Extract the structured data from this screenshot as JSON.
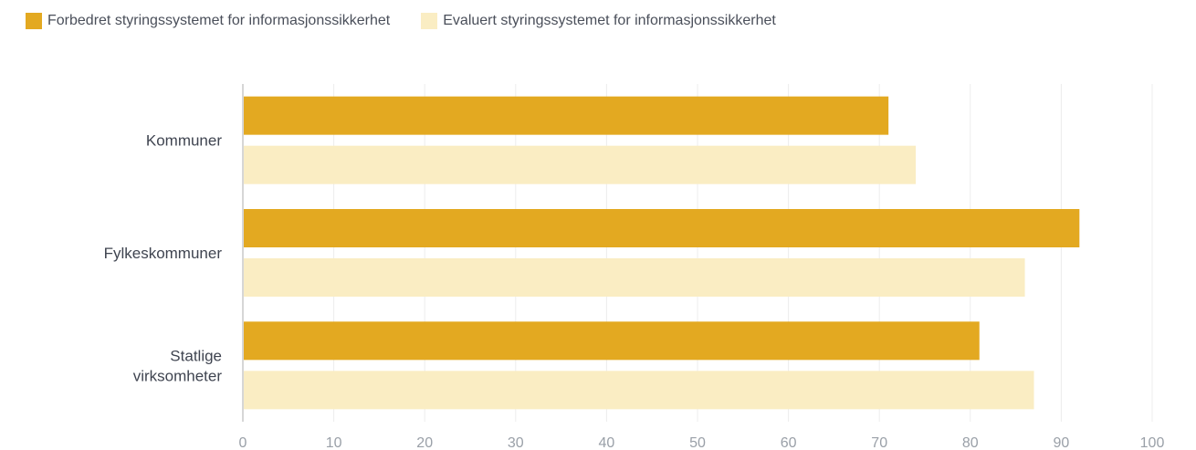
{
  "chart_data": {
    "type": "bar",
    "orientation": "horizontal",
    "categories": [
      "Kommuner",
      "Fylkeskommuner",
      "Statlige virksomheter"
    ],
    "category_label_lines": [
      [
        "Kommuner"
      ],
      [
        "Fylkeskommuner"
      ],
      [
        "Statlige",
        "virksomheter"
      ]
    ],
    "series": [
      {
        "name": "Forbedret styringssystemet for informasjonssikkerhet",
        "color": "#e3a921",
        "values": [
          71,
          92,
          81
        ]
      },
      {
        "name": "Evaluert styringssystemet for informasjonssikkerhet",
        "color": "#faedc3",
        "values": [
          74,
          86,
          87
        ]
      }
    ],
    "xlim": [
      0,
      100
    ],
    "ticks": [
      "0",
      "10",
      "20",
      "30",
      "40",
      "50",
      "60",
      "70",
      "80",
      "90",
      "100"
    ],
    "title": "",
    "xlabel": "",
    "ylabel": "",
    "grid": "vertical",
    "legend_position": "top-left"
  }
}
